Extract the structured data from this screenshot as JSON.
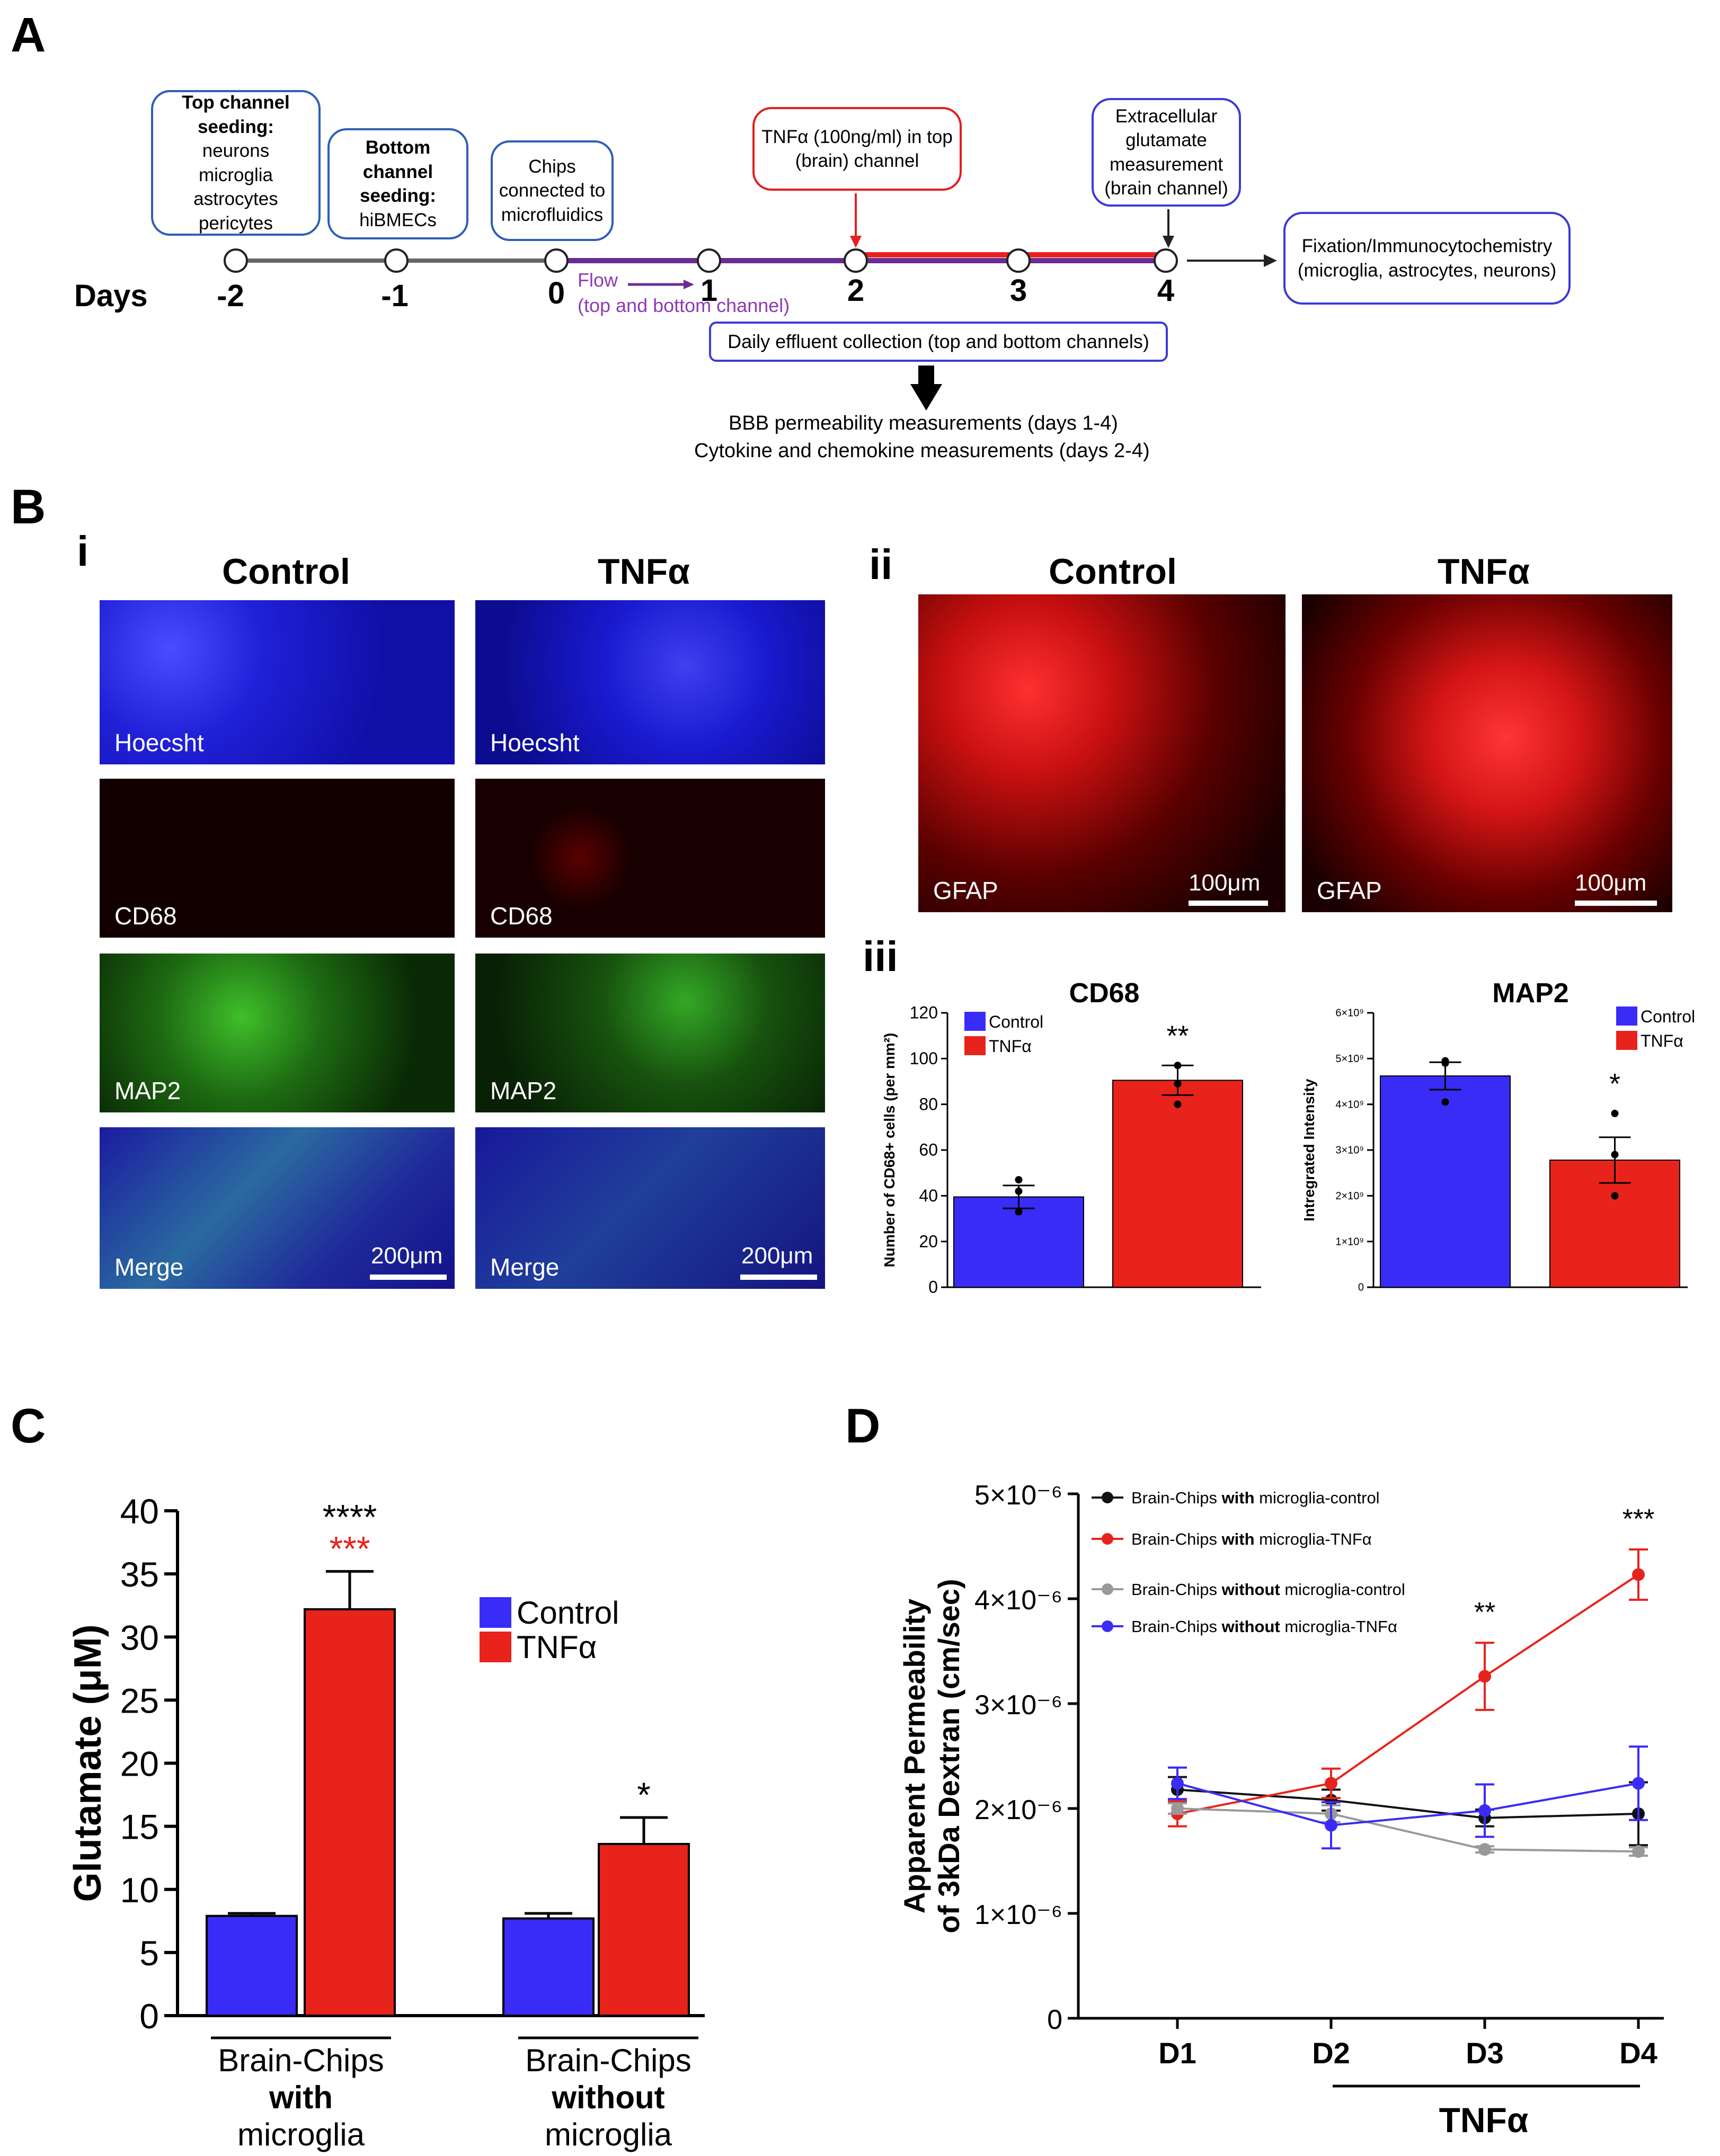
{
  "panel_labels": {
    "a": "A",
    "b": "B",
    "b_i": "i",
    "b_ii": "ii",
    "b_iii": "iii",
    "c": "C",
    "d": "D"
  },
  "timeline": {
    "days_label": "Days",
    "days": [
      "-2",
      "-1",
      "0",
      "1",
      "2",
      "3",
      "4"
    ],
    "box_top_seeding": {
      "title": "Top channel seeding:",
      "body": "neurons microglia astrocytes pericytes"
    },
    "box_bottom_seeding": {
      "title": "Bottom channel seeding:",
      "body": "hiBMECs"
    },
    "box_chips": "Chips connected to microfluidics",
    "box_tnf": "TNFα (100ng/ml) in top (brain) channel",
    "box_glutamate": "Extracellular glutamate measurement (brain channel)",
    "box_fixation": "Fixation/Immunocytochemistry (microglia, astrocytes, neurons)",
    "flow_label": "Flow",
    "flow_sub": "(top and bottom channel)",
    "effluent": "Daily effluent collection (top and bottom channels)",
    "measure_1": "BBB permeability measurements (days 1-4)",
    "measure_2": "Cytokine and chemokine measurements (days 2-4)",
    "colors": {
      "flow": "#6a2c91",
      "tnf": "#e82020",
      "baseline": "#808080",
      "box_blue": "#2f5fb3"
    }
  },
  "panel_bi": {
    "col_control": "Control",
    "col_tnf": "TNFα",
    "rows": [
      "Hoecsht",
      "CD68",
      "MAP2",
      "Merge"
    ],
    "scale": "200μm"
  },
  "panel_bii": {
    "col_control": "Control",
    "col_tnf": "TNFα",
    "stain": "GFAP",
    "scale": "100μm"
  },
  "chart_data": [
    {
      "id": "cd68",
      "type": "bar",
      "title": "CD68",
      "ylabel": "Number of CD68+ cells  (per mm²)",
      "ylim": [
        0,
        120
      ],
      "yticks": [
        "0",
        "20",
        "40",
        "60",
        "80",
        "100",
        "120"
      ],
      "categories": [
        "Control",
        "TNFα"
      ],
      "values": [
        39.5,
        90.5
      ],
      "errors": [
        5,
        6.5
      ],
      "points": [
        [
          47,
          42,
          33
        ],
        [
          97,
          89,
          80
        ]
      ],
      "significance": [
        "",
        "**"
      ],
      "colors": [
        "#3a2cf7",
        "#e8231b"
      ],
      "legend": [
        "Control",
        "TNFα"
      ]
    },
    {
      "id": "map2",
      "type": "bar",
      "title": "MAP2",
      "ylabel": "Intregrated Intensity",
      "ylim": [
        0,
        6
      ],
      "yticks": [
        "0",
        "1×10⁹",
        "2×10⁹",
        "3×10⁹",
        "4×10⁹",
        "5×10⁹",
        "6×10⁹"
      ],
      "categories": [
        "Control",
        "TNFα"
      ],
      "values": [
        4.62,
        2.78
      ],
      "errors": [
        0.3,
        0.5
      ],
      "points": [
        [
          4.95,
          4.9,
          4.05
        ],
        [
          3.8,
          2.9,
          2.0
        ]
      ],
      "significance": [
        "",
        "*"
      ],
      "colors": [
        "#3a2cf7",
        "#e8231b"
      ],
      "legend": [
        "Control",
        "TNFα"
      ]
    },
    {
      "id": "glutamate",
      "type": "bar",
      "title": "",
      "ylabel": "Glutamate (μM)",
      "ylim": [
        0,
        40
      ],
      "yticks": [
        "0",
        "5",
        "10",
        "15",
        "20",
        "25",
        "30",
        "35",
        "40"
      ],
      "groups": [
        {
          "line1": "Brain-Chips",
          "line2": "with",
          "line3": "microglia"
        },
        {
          "line1": "Brain-Chips",
          "line2": "without",
          "line3": "microglia"
        }
      ],
      "series": [
        {
          "name": "Control",
          "values": [
            7.9,
            7.7
          ],
          "errors": [
            0.2,
            0.4
          ]
        },
        {
          "name": "TNFα",
          "values": [
            32.2,
            13.6
          ],
          "errors": [
            3.0,
            2.1
          ]
        }
      ],
      "significance": [
        {
          "black": "****",
          "red": "***"
        },
        {
          "black": "*",
          "red": ""
        }
      ],
      "colors": [
        "#3a2cf7",
        "#e8231b"
      ]
    },
    {
      "id": "permeability",
      "type": "line",
      "ylabel1": "Apparent Permeability",
      "ylabel2": "of 3kDa Dextran (cm/sec)",
      "ylim": [
        0,
        5
      ],
      "yticks": [
        "0",
        "1×10⁻⁶",
        "2×10⁻⁶",
        "3×10⁻⁶",
        "4×10⁻⁶",
        "5×10⁻⁶"
      ],
      "x": [
        "D1",
        "D2",
        "D3",
        "D4"
      ],
      "xbar_label": "TNFα",
      "series": [
        {
          "pre": "Brain-Chips ",
          "bold": "with",
          "post": " microglia-control",
          "color": "#111111",
          "values": [
            2.18,
            2.08,
            1.91,
            1.95
          ],
          "errors": [
            0.12,
            0.1,
            0.08,
            0.3
          ]
        },
        {
          "pre": "Brain-Chips ",
          "bold": "with",
          "post": " microglia-TNFα",
          "color": "#e8231b",
          "values": [
            1.95,
            2.24,
            3.26,
            4.23
          ],
          "errors": [
            0.12,
            0.14,
            0.32,
            0.24
          ]
        },
        {
          "pre": "Brain-Chips ",
          "bold": "without",
          "post": " microglia-control",
          "color": "#999999",
          "values": [
            2.0,
            1.95,
            1.61,
            1.59
          ],
          "errors": [
            0.05,
            0.08,
            0.03,
            0.04
          ]
        },
        {
          "pre": "Brain-Chips ",
          "bold": "without",
          "post": " microglia-TNFα",
          "color": "#3a2cf7",
          "values": [
            2.24,
            1.84,
            1.98,
            2.24
          ],
          "errors": [
            0.15,
            0.22,
            0.25,
            0.35
          ]
        }
      ],
      "significance": [
        "",
        "",
        "**",
        "***"
      ]
    }
  ]
}
